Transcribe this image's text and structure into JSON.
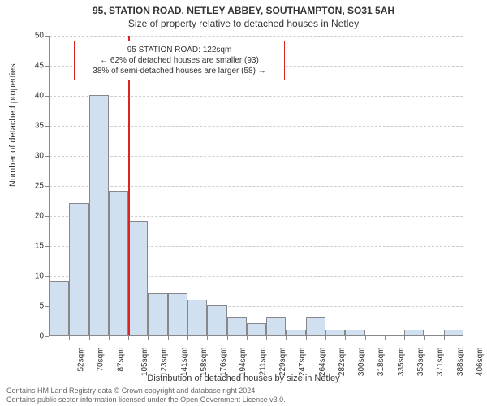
{
  "header": {
    "title": "95, STATION ROAD, NETLEY ABBEY, SOUTHAMPTON, SO31 5AH",
    "subtitle": "Size of property relative to detached houses in Netley"
  },
  "axes": {
    "ylabel": "Number of detached properties",
    "xlabel": "Distribution of detached houses by size in Netley",
    "ylim": [
      0,
      50
    ],
    "ytick_step": 5,
    "yticks": [
      0,
      5,
      10,
      15,
      20,
      25,
      30,
      35,
      40,
      45,
      50
    ]
  },
  "chart": {
    "type": "histogram",
    "bar_color": "#d0e0f0",
    "bar_border": "#888888",
    "grid_color": "#cccccc",
    "background_color": "#ffffff",
    "marker_color": "#dd2222",
    "bins": [
      {
        "label": "52sqm",
        "value": 9
      },
      {
        "label": "70sqm",
        "value": 22
      },
      {
        "label": "87sqm",
        "value": 40
      },
      {
        "label": "105sqm",
        "value": 24
      },
      {
        "label": "123sqm",
        "value": 19
      },
      {
        "label": "141sqm",
        "value": 7
      },
      {
        "label": "158sqm",
        "value": 7
      },
      {
        "label": "176sqm",
        "value": 6
      },
      {
        "label": "194sqm",
        "value": 5
      },
      {
        "label": "211sqm",
        "value": 3
      },
      {
        "label": "229sqm",
        "value": 2
      },
      {
        "label": "247sqm",
        "value": 3
      },
      {
        "label": "264sqm",
        "value": 1
      },
      {
        "label": "282sqm",
        "value": 3
      },
      {
        "label": "300sqm",
        "value": 1
      },
      {
        "label": "318sqm",
        "value": 1
      },
      {
        "label": "335sqm",
        "value": 0
      },
      {
        "label": "353sqm",
        "value": 0
      },
      {
        "label": "371sqm",
        "value": 1
      },
      {
        "label": "388sqm",
        "value": 0
      },
      {
        "label": "406sqm",
        "value": 1
      }
    ],
    "marker_bin_index": 4
  },
  "callout": {
    "line1": "95 STATION ROAD: 122sqm",
    "line2": "← 62% of detached houses are smaller (93)",
    "line3": "38% of semi-detached houses are larger (58) →"
  },
  "footer": {
    "line1": "Contains HM Land Registry data © Crown copyright and database right 2024.",
    "line2": "Contains public sector information licensed under the Open Government Licence v3.0."
  },
  "style": {
    "title_fontsize": 12,
    "axis_label_fontsize": 11,
    "tick_fontsize": 10,
    "footer_fontsize": 9,
    "text_color": "#333333",
    "footer_color": "#666666"
  }
}
